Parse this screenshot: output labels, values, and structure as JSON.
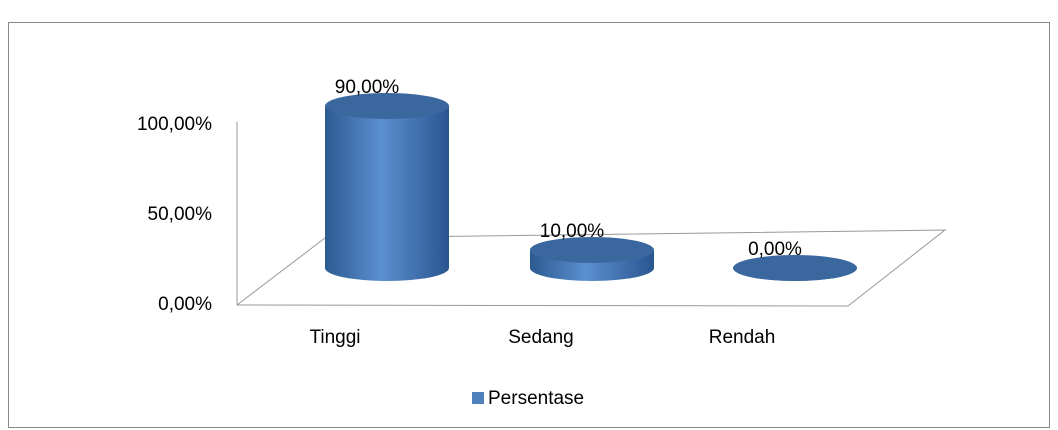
{
  "chart_data": {
    "type": "cylinder",
    "categories": [
      "Tinggi",
      "Sedang",
      "Rendah"
    ],
    "series": [
      {
        "name": "Persentase",
        "color": "#4f81bd",
        "values": [
          90,
          10,
          0
        ],
        "value_labels": [
          "90,00%",
          "10,00%",
          "0,00%"
        ]
      }
    ],
    "ylim": [
      0,
      100
    ],
    "yticks": [
      {
        "value": 0,
        "label": "0,00%"
      },
      {
        "value": 50,
        "label": "50,00%"
      },
      {
        "value": 100,
        "label": "100,00%"
      }
    ],
    "legend": "bottom"
  }
}
